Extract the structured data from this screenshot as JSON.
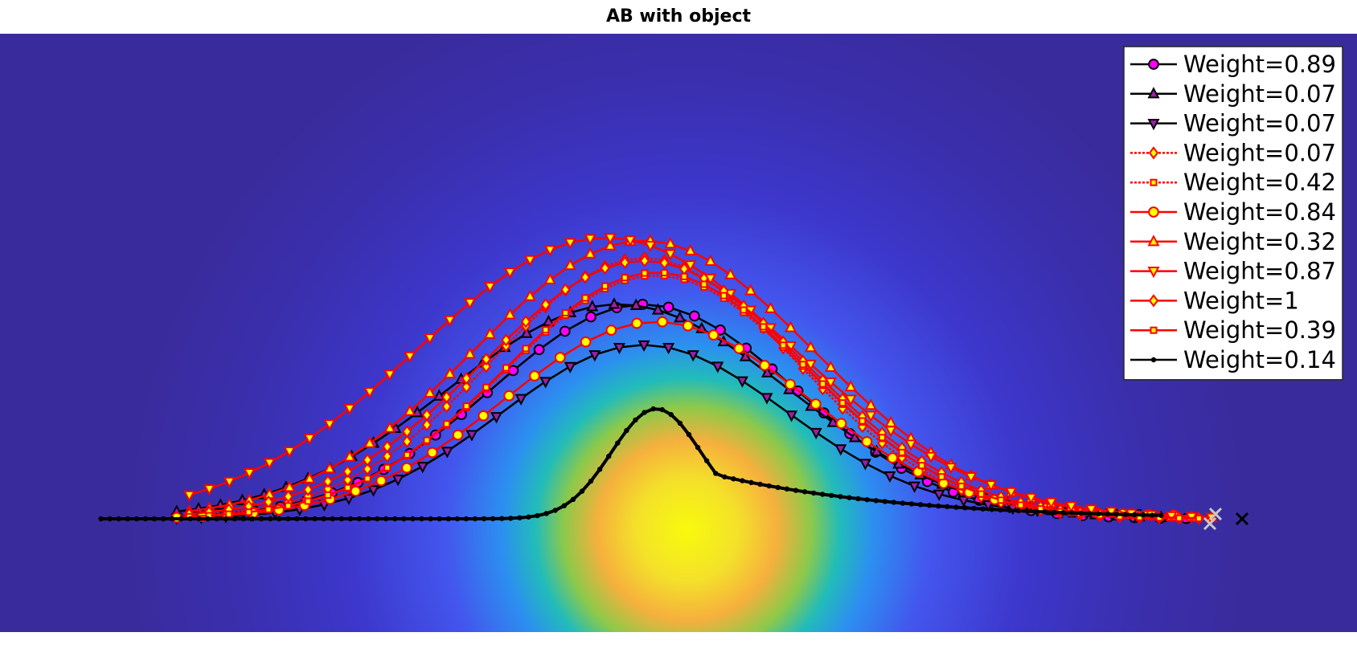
{
  "chart_data": {
    "type": "line",
    "title": "AB with object",
    "xlabel": "",
    "ylabel": "",
    "axes_visible": false,
    "grid": false,
    "legend_position": "top-right",
    "background": {
      "type": "radial-heatmap",
      "description_colors": [
        "#3a2d9e",
        "#3e36c8",
        "#4659ef",
        "#2c9ee6",
        "#20c2b3",
        "#8fc843",
        "#f4b23e",
        "#f3e226",
        "#f8fa0d"
      ]
    },
    "colors": {
      "black": "#000000",
      "red": "#ff0000",
      "magenta": "#ff00ff",
      "purple": "#9b1fa8",
      "yellow": "#ffff00",
      "orange": "#ffa500"
    },
    "series": [
      {
        "name": "Weight=0.89",
        "line": "black",
        "style": "solid",
        "marker": "circle",
        "fill": "magenta",
        "points": 40,
        "peak": 0.74,
        "start": 0.14,
        "end": 0.94,
        "center": 0.51,
        "width": 0.17,
        "shift": 0.0
      },
      {
        "name": "Weight=0.07",
        "line": "black",
        "style": "solid",
        "marker": "triangle-up",
        "fill": "purple",
        "points": 46,
        "peak": 0.74,
        "start": 0.14,
        "end": 0.92,
        "center": 0.49,
        "width": 0.19,
        "shift": 0.0
      },
      {
        "name": "Weight=0.07",
        "line": "black",
        "style": "solid",
        "marker": "triangle-down",
        "fill": "purple",
        "points": 40,
        "peak": 0.6,
        "start": 0.14,
        "end": 0.9,
        "center": 0.51,
        "width": 0.16,
        "shift": -0.015
      },
      {
        "name": "Weight=0.07",
        "line": "red",
        "style": "dotted",
        "marker": "diamond",
        "fill": "yellow",
        "points": 52,
        "peak": 0.9,
        "start": 0.15,
        "end": 0.95,
        "center": 0.51,
        "width": 0.17,
        "shift": 0.0
      },
      {
        "name": "Weight=0.42",
        "line": "red",
        "style": "dotted",
        "marker": "square",
        "fill": "yellow",
        "points": 52,
        "peak": 0.84,
        "start": 0.15,
        "end": 0.95,
        "center": 0.52,
        "width": 0.17,
        "shift": 0.0
      },
      {
        "name": "Weight=0.84",
        "line": "red",
        "style": "solid",
        "marker": "circle",
        "fill": "yellow",
        "points": 40,
        "peak": 0.68,
        "start": 0.14,
        "end": 0.93,
        "center": 0.52,
        "width": 0.17,
        "shift": -0.01
      },
      {
        "name": "Weight=0.32",
        "line": "red",
        "style": "solid",
        "marker": "triangle-up",
        "fill": "yellow",
        "points": 52,
        "peak": 0.96,
        "start": 0.15,
        "end": 0.96,
        "center": 0.51,
        "width": 0.19,
        "shift": 0.0
      },
      {
        "name": "Weight=0.87",
        "line": "red",
        "style": "solid",
        "marker": "triangle-down",
        "fill": "yellow",
        "points": 52,
        "peak": 0.97,
        "start": 0.15,
        "end": 0.96,
        "center": 0.48,
        "width": 0.21,
        "shift": 0.0
      },
      {
        "name": "Weight=1",
        "line": "red",
        "style": "solid",
        "marker": "diamond",
        "fill": "yellow",
        "points": 52,
        "peak": 0.89,
        "start": 0.15,
        "end": 0.95,
        "center": 0.51,
        "width": 0.18,
        "shift": 0.0
      },
      {
        "name": "Weight=0.39",
        "line": "red",
        "style": "solid",
        "marker": "square",
        "fill": "yellow",
        "points": 52,
        "peak": 0.85,
        "start": 0.15,
        "end": 0.95,
        "center": 0.52,
        "width": 0.17,
        "shift": 0.0
      },
      {
        "name": "Weight=0.14",
        "line": "black",
        "style": "solid",
        "marker": "dot",
        "fill": "black",
        "points": 120,
        "peak": 0.38,
        "start": 0.08,
        "end": 0.92,
        "center": 0.52,
        "width": 0.05,
        "shift": 0.0
      }
    ]
  }
}
